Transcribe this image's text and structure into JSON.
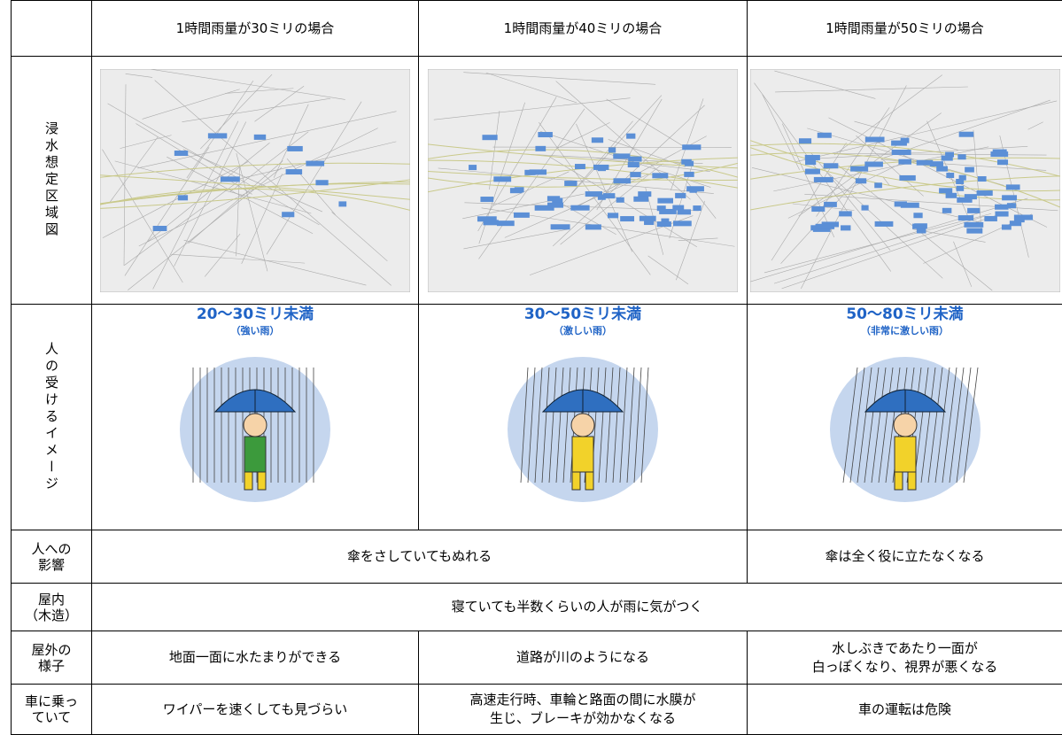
{
  "table": {
    "header": [
      "1時間雨量が30ミリの場合",
      "1時間雨量が40ミリの場合",
      "1時間雨量が50ミリの場合"
    ],
    "map_row": {
      "label": "浸水想定区域図"
    },
    "image_row": {
      "label": "人の受けるイメージ",
      "cells": [
        {
          "rain": "20～30ミリ未満",
          "desc": "（強い雨）"
        },
        {
          "rain": "30～50ミリ未満",
          "desc": "（激しい雨）"
        },
        {
          "rain": "50～80ミリ未満",
          "desc": "（非常に激しい雨）"
        }
      ]
    },
    "rows": [
      {
        "label": "人への\n影響",
        "cells": [
          "傘をさしていてもぬれる",
          "傘は全く役に立たなくなる"
        ]
      },
      {
        "label": "屋内\n（木造）",
        "cells": [
          "寝ていても半数くらいの人が雨に気がつく"
        ]
      },
      {
        "label": "屋外の\n様子",
        "cells": [
          "地面一面に水たまりができる",
          "道路が川のようになる",
          "水しぶきであたり一面が\n白っぽくなり、視界が悪くなる"
        ]
      },
      {
        "label": "車に乗っ\nていて",
        "cells": [
          "ワイパーを速くしても見づらい",
          "高速走行時、車輪と路面の間に水膜が\n生じ、ブレーキが効かなくなる",
          "車の運転は危険"
        ]
      }
    ]
  }
}
